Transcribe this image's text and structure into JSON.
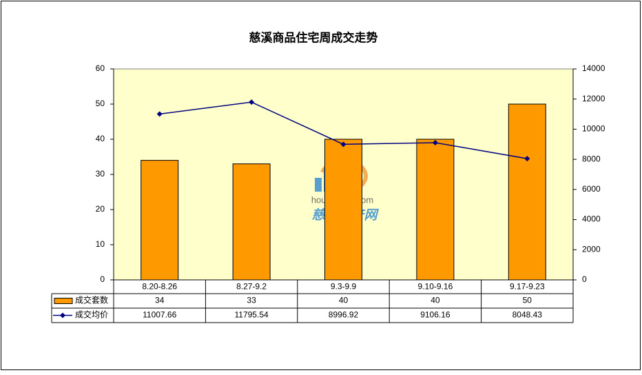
{
  "chart_data": {
    "type": "bar_line_table",
    "title": "慈溪商品住宅周成交走势",
    "categories": [
      "8.20-8.26",
      "8.27-9.2",
      "9.3-9.9",
      "9.10-9.16",
      "9.17-9.23"
    ],
    "series": [
      {
        "name": "成交套数",
        "color": "#ff9900",
        "type": "bar",
        "values": [
          34,
          33,
          40,
          40,
          50
        ]
      },
      {
        "name": "成交均价",
        "color": "#000080",
        "type": "line",
        "axis": "y2",
        "values": [
          11007.66,
          11795.54,
          8996.92,
          9106.16,
          8048.43
        ]
      }
    ],
    "ylim": [
      0,
      60
    ],
    "yticks": [
      0,
      10,
      20,
      30,
      40,
      50,
      60
    ],
    "y2lim": [
      0,
      14000
    ],
    "y2ticks": [
      0,
      2000,
      4000,
      6000,
      8000,
      10000,
      12000,
      14000
    ],
    "plot_background": "#ffffcc",
    "grid": false,
    "watermark": {
      "url": "house.zxip.com",
      "name": "慈溪房产网"
    }
  }
}
